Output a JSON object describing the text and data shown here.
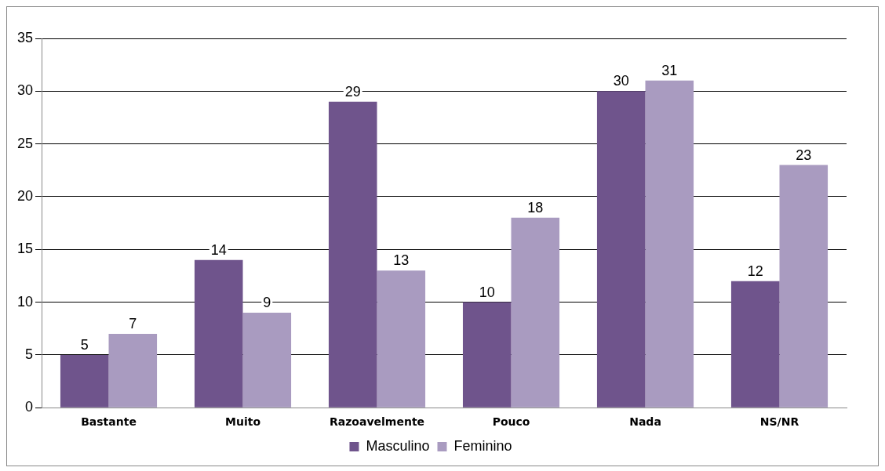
{
  "chart_data": {
    "type": "bar",
    "categories": [
      "Bastante",
      "Muito",
      "Razoavelmente",
      "Pouco",
      "Nada",
      "NS/NR"
    ],
    "series": [
      {
        "name": "Masculino",
        "color": "#6f548c",
        "values": [
          5,
          14,
          29,
          10,
          30,
          12
        ]
      },
      {
        "name": "Feminino",
        "color": "#a99bc0",
        "values": [
          7,
          9,
          13,
          18,
          31,
          23
        ]
      }
    ],
    "ylim": [
      0,
      35
    ],
    "yticks": [
      0,
      5,
      10,
      15,
      20,
      25,
      30,
      35
    ],
    "grid": "y",
    "legend": "bottom",
    "data_labels": true
  }
}
